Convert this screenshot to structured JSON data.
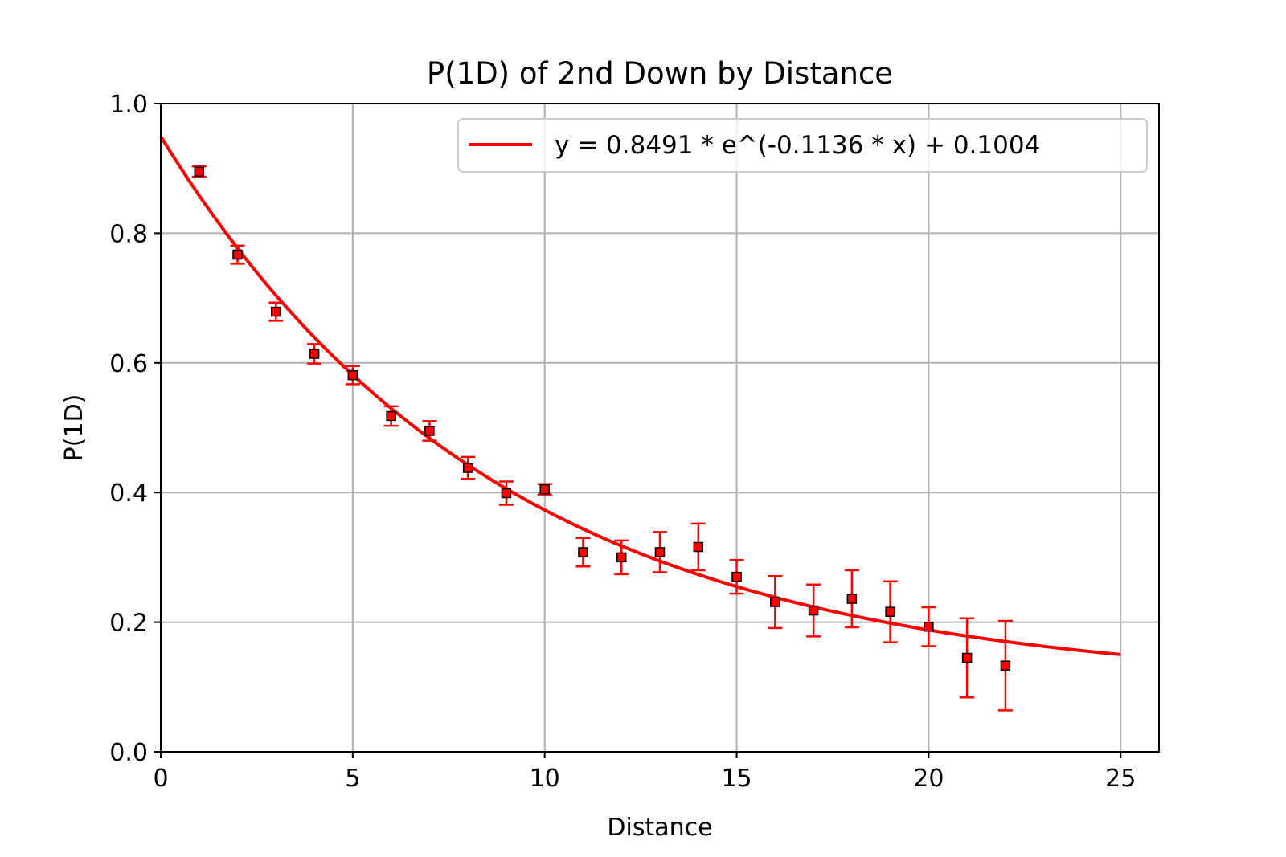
{
  "chart_data": {
    "type": "scatter",
    "title": "P(1D) of 2nd Down by Distance",
    "xlabel": "Distance",
    "ylabel": "P(1D)",
    "xlim": [
      0,
      26
    ],
    "ylim": [
      0.0,
      1.0
    ],
    "xticks": [
      0,
      5,
      10,
      15,
      20,
      25
    ],
    "yticks": [
      0.0,
      0.2,
      0.4,
      0.6,
      0.8,
      1.0
    ],
    "xtick_labels": [
      "0",
      "5",
      "10",
      "15",
      "20",
      "25"
    ],
    "ytick_labels": [
      "0.0",
      "0.2",
      "0.4",
      "0.6",
      "0.8",
      "1.0"
    ],
    "grid": true,
    "legend_position": "top-right",
    "series": [
      {
        "type": "errorbar",
        "color": "#ff0000",
        "marker": "square",
        "x": [
          1,
          2,
          3,
          4,
          5,
          6,
          7,
          8,
          9,
          10,
          11,
          12,
          13,
          14,
          15,
          16,
          17,
          18,
          19,
          20,
          21,
          22
        ],
        "y": [
          0.895,
          0.767,
          0.679,
          0.614,
          0.581,
          0.518,
          0.495,
          0.438,
          0.399,
          0.405,
          0.308,
          0.3,
          0.308,
          0.316,
          0.27,
          0.231,
          0.218,
          0.236,
          0.216,
          0.193,
          0.145,
          0.133
        ],
        "err": [
          0.008,
          0.014,
          0.014,
          0.015,
          0.014,
          0.015,
          0.015,
          0.017,
          0.018,
          0.008,
          0.022,
          0.026,
          0.031,
          0.036,
          0.026,
          0.04,
          0.04,
          0.044,
          0.047,
          0.03,
          0.061,
          0.069
        ]
      },
      {
        "type": "line",
        "name": "y = 0.8491 * e^(-0.1136 * x) + 0.1004",
        "color": "#ff0000",
        "function": {
          "a": 0.8491,
          "b": -0.1136,
          "c": 0.1004
        },
        "x_range": [
          0,
          25
        ]
      }
    ]
  }
}
